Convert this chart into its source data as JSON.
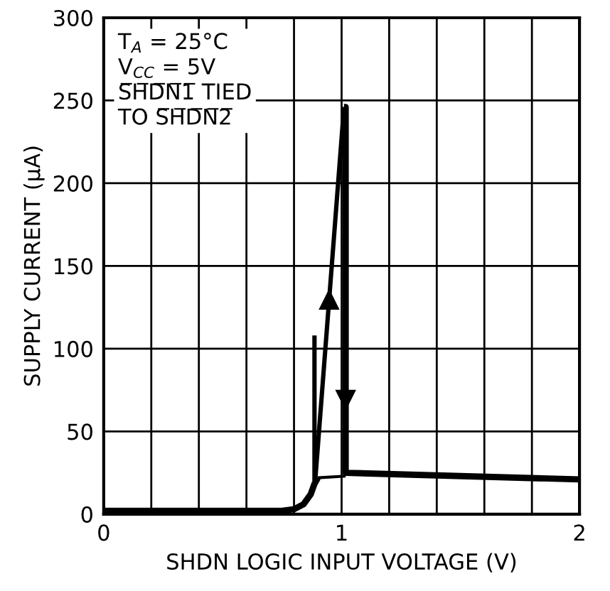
{
  "chart_data": {
    "type": "line",
    "xlabel": "SHDN LOGIC INPUT VOLTAGE (V)",
    "ylabel": "SUPPLY CURRENT (µA)",
    "xlim": [
      0,
      2
    ],
    "ylim": [
      0,
      300
    ],
    "xticks": [
      0,
      {
        "value": 0.2,
        "label": null
      },
      {
        "value": 0.4,
        "label": null
      },
      {
        "value": 0.6,
        "label": null
      },
      {
        "value": 0.8,
        "label": null
      },
      1,
      {
        "value": 1.2,
        "label": null
      },
      {
        "value": 1.4,
        "label": null
      },
      {
        "value": 1.6,
        "label": null
      },
      {
        "value": 1.8,
        "label": null
      },
      2
    ],
    "yticks": [
      0,
      50,
      100,
      150,
      200,
      250,
      300
    ],
    "grid": true,
    "marker": "none",
    "line_style": "solid",
    "series": [
      {
        "color": "#000000",
        "x": [
          0,
          0.6,
          0.75,
          0.8,
          0.84,
          0.87,
          0.885,
          0.9
        ],
        "values": [
          2,
          2,
          2,
          3,
          6,
          12,
          18,
          22
        ]
      },
      {
        "color": "#000000",
        "x": [
          0.886,
          0.886
        ],
        "values": [
          108,
          20
        ]
      },
      {
        "color": "#000000",
        "x": [
          0.89,
          1.01
        ],
        "values": [
          22,
          246
        ]
      },
      {
        "color": "#000000",
        "x": [
          0.9,
          1.017
        ],
        "values": [
          22,
          23
        ]
      },
      {
        "color": "#000000",
        "x": [
          1.01,
          1.017,
          1.017,
          2
        ],
        "values": [
          246,
          246,
          25,
          21
        ]
      }
    ],
    "annotations": [
      "T$_{A}$ = 25°C\nV$_{CC}$ = 5V\nS̅H̅D̅N̅1̅ TIED\nTO S̅H̅D̅N̅2̅"
    ]
  }
}
